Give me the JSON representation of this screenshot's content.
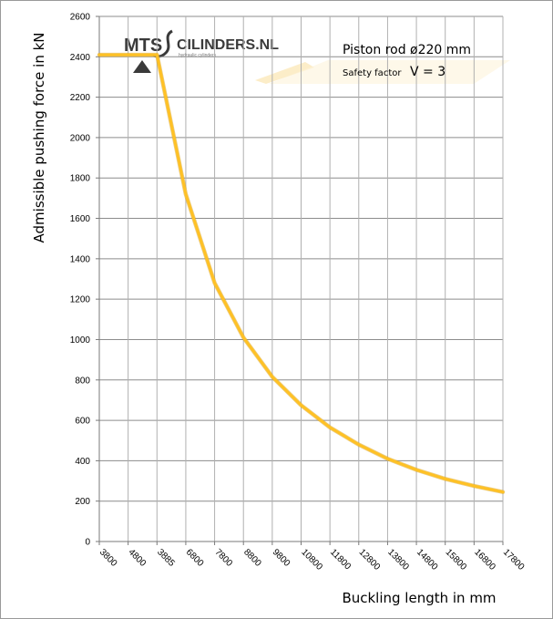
{
  "chart_data": {
    "type": "line",
    "title": "",
    "xlabel": "Buckling length in mm",
    "ylabel": "Admissible pushing force in kN",
    "x_categories": [
      "3800",
      "4800",
      "3885",
      "6800",
      "7800",
      "8800",
      "9800",
      "10800",
      "11800",
      "12800",
      "13800",
      "14800",
      "15800",
      "16800",
      "17800"
    ],
    "ylim": [
      0,
      2600
    ],
    "yticks": [
      0,
      200,
      400,
      600,
      800,
      1000,
      1200,
      1400,
      1600,
      1800,
      2000,
      2200,
      2400,
      2600
    ],
    "grid": true,
    "series": [
      {
        "color": "#FFC125",
        "values": [
          2410,
          2410,
          2410,
          1720,
          1280,
          1010,
          815,
          675,
          565,
          480,
          410,
          355,
          310,
          275,
          245
        ]
      }
    ],
    "annotations": {
      "piston_rod": "Piston rod ø220 mm",
      "safety_factor_label": "Safety factor",
      "safety_factor_value": "V = 3"
    }
  },
  "logo": {
    "mts_text": "MTS",
    "cylinders_text": "CILINDERS.NL",
    "tagline": "hydraulic cylinders"
  }
}
